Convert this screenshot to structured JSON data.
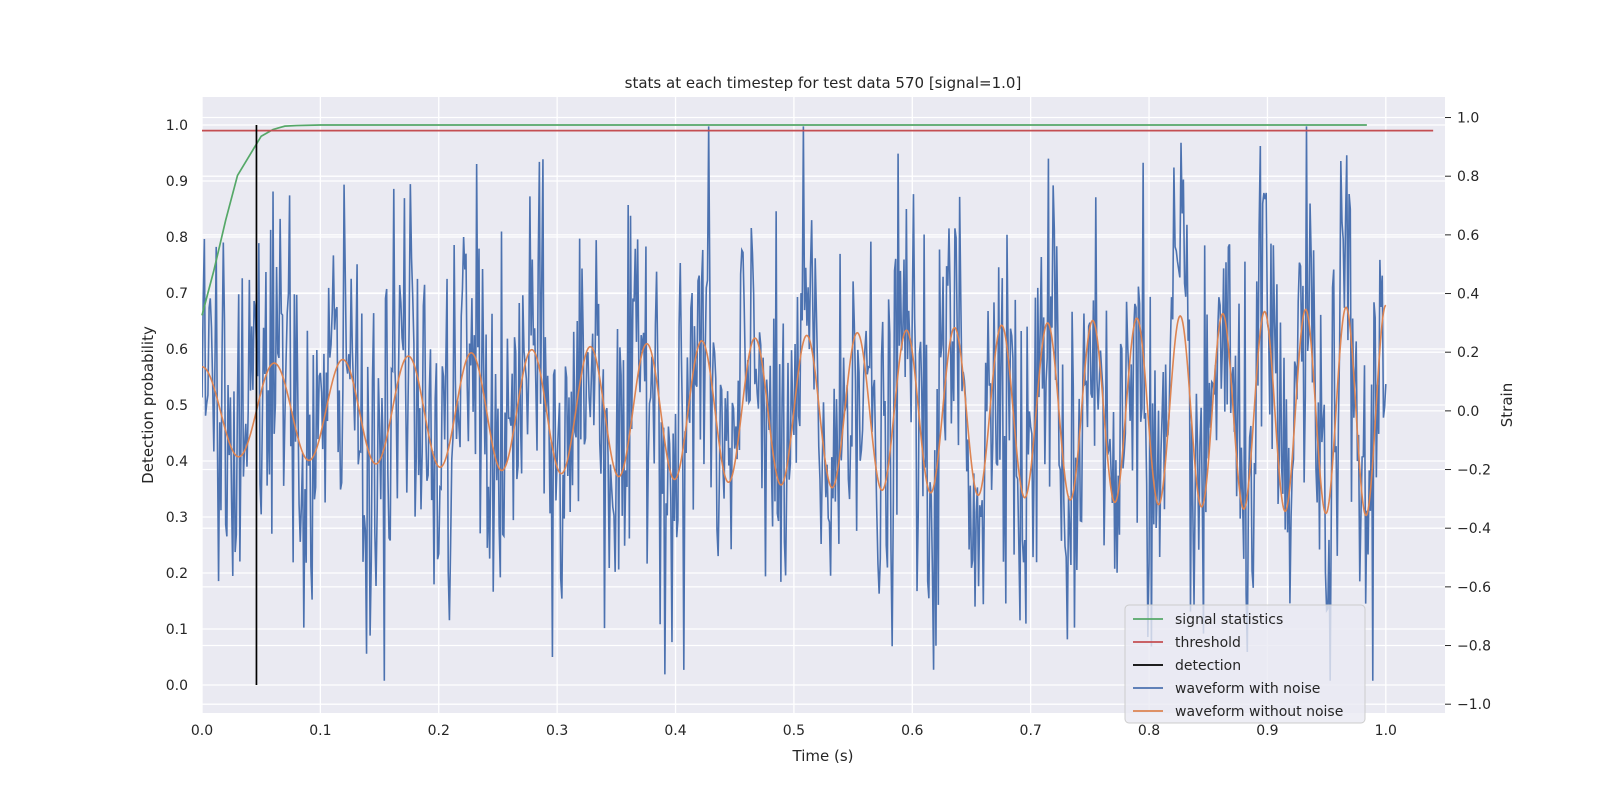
{
  "chart_data": {
    "type": "line",
    "title": "stats at each timestep for test data 570 [signal=1.0]",
    "xlabel": "Time (s)",
    "ylabel_left": "Detection probability",
    "ylabel_right": "Strain",
    "xlim": [
      0.0,
      1.05
    ],
    "ylim_left": [
      -0.05,
      1.05
    ],
    "ylim_right": [
      -1.03,
      1.07
    ],
    "x_ticks": [
      "0.0",
      "0.1",
      "0.2",
      "0.3",
      "0.4",
      "0.5",
      "0.6",
      "0.7",
      "0.8",
      "0.9",
      "1.0"
    ],
    "y_left_ticks": [
      "0.0",
      "0.1",
      "0.2",
      "0.3",
      "0.4",
      "0.5",
      "0.6",
      "0.7",
      "0.8",
      "0.9",
      "1.0"
    ],
    "y_right_ticks": [
      "−1.0",
      "−0.8",
      "−0.6",
      "−0.4",
      "−0.2",
      "0.0",
      "0.2",
      "0.4",
      "0.6",
      "0.8",
      "1.0"
    ],
    "grid": true,
    "legend_position": "lower-right",
    "colors": {
      "background": "#eaeaf2",
      "grid": "#ffffff",
      "signal_statistics": "#55a868",
      "threshold": "#c44e52",
      "detection": "#000000",
      "waveform_with_noise": "#4c72b0",
      "waveform_without_noise": "#dd8452"
    },
    "legend": [
      {
        "label": "signal statistics",
        "key": "signal_statistics"
      },
      {
        "label": "threshold",
        "key": "threshold"
      },
      {
        "label": "detection",
        "key": "detection"
      },
      {
        "label": "waveform with noise",
        "key": "waveform_with_noise"
      },
      {
        "label": "waveform without noise",
        "key": "waveform_without_noise"
      }
    ],
    "series": [
      {
        "name": "signal statistics",
        "axis": "left",
        "x": [
          0.0,
          0.01,
          0.02,
          0.03,
          0.04,
          0.05,
          0.06,
          0.07,
          0.08,
          0.1,
          0.2,
          0.5,
          0.984
        ],
        "y": [
          0.66,
          0.74,
          0.83,
          0.91,
          0.945,
          0.98,
          0.992,
          0.998,
          0.999,
          1.0,
          1.0,
          1.0,
          1.0
        ]
      },
      {
        "name": "threshold",
        "axis": "left",
        "x": [
          0.0,
          1.04
        ],
        "y": [
          0.99,
          0.99
        ]
      },
      {
        "name": "detection",
        "axis": "left",
        "x": [
          0.046,
          0.046
        ],
        "y": [
          0.0,
          1.0
        ]
      },
      {
        "name": "waveform with noise",
        "axis": "right",
        "generated": "noisy chirp, ~1000 samples over 0 to 1 s, peak strain ~0.97"
      },
      {
        "name": "waveform without noise",
        "axis": "right",
        "chirp": {
          "f_start": 16,
          "f_end": 30,
          "amp_start": 0.15,
          "amp_end": 0.36,
          "x_end": 1.0
        }
      }
    ]
  }
}
